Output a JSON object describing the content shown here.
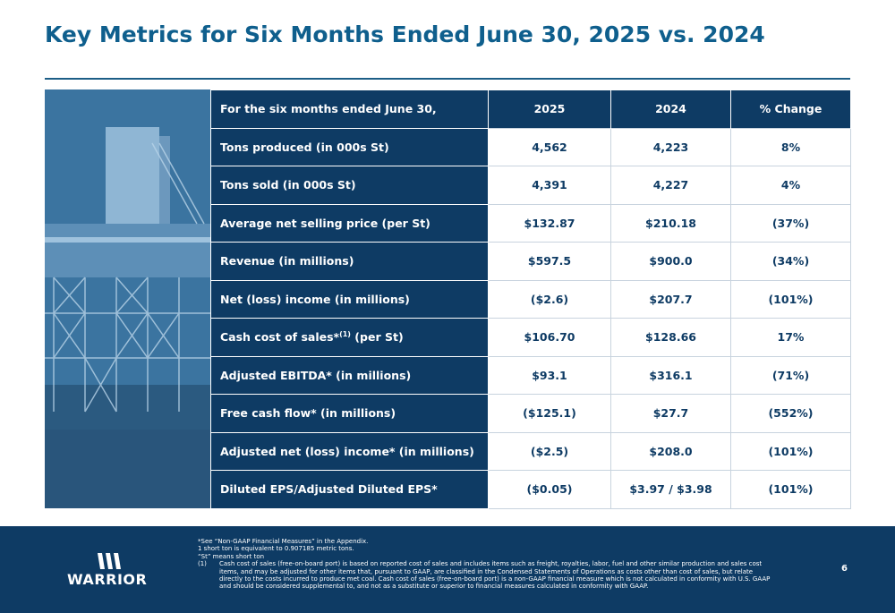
{
  "title": "Key Metrics for Six Months Ended June 30, 2025 vs. 2024",
  "table": {
    "headers": [
      "For the six months ended June 30,",
      "2025",
      "2024",
      "% Change"
    ],
    "rows": [
      {
        "label": "Tons produced (in 000s St)",
        "sup": "",
        "label_suffix": "",
        "v2025": "4,562",
        "v2024": "4,223",
        "change": "8%"
      },
      {
        "label": "Tons sold  (in 000s St)",
        "sup": "",
        "label_suffix": "",
        "v2025": "4,391",
        "v2024": "4,227",
        "change": "4%"
      },
      {
        "label": "Average net selling price (per St)",
        "sup": "",
        "label_suffix": "",
        "v2025": "$132.87",
        "v2024": "$210.18",
        "change": "(37%)"
      },
      {
        "label": "Revenue (in millions)",
        "sup": "",
        "label_suffix": "",
        "v2025": "$597.5",
        "v2024": "$900.0",
        "change": "(34%)"
      },
      {
        "label": "Net (loss) income (in millions)",
        "sup": "",
        "label_suffix": "",
        "v2025": "($2.6)",
        "v2024": "$207.7",
        "change": "(101%)"
      },
      {
        "label": "Cash cost of sales*",
        "sup": "(1)",
        "label_suffix": " (per St)",
        "v2025": "$106.70",
        "v2024": "$128.66",
        "change": "17%"
      },
      {
        "label": "Adjusted EBITDA* (in millions)",
        "sup": "",
        "label_suffix": "",
        "v2025": "$93.1",
        "v2024": "$316.1",
        "change": "(71%)"
      },
      {
        "label": "Free cash flow* (in millions)",
        "sup": "",
        "label_suffix": "",
        "v2025": "($125.1)",
        "v2024": "$27.7",
        "change": "(552%)"
      },
      {
        "label": "Adjusted net (loss) income* (in millions)",
        "sup": "",
        "label_suffix": "",
        "v2025": "($2.5)",
        "v2024": "$208.0",
        "change": "(101%)"
      },
      {
        "label": "Diluted EPS/Adjusted Diluted EPS*",
        "sup": "",
        "label_suffix": "",
        "v2025": "($0.05)",
        "v2024": "$3.97 / $3.98",
        "change": "(101%)"
      }
    ]
  },
  "footnotes": {
    "line1": "*See “Non-GAAP Financial Measures” in the Appendix.",
    "line2": "1 short ton is equivalent to 0.907185 metric tons.",
    "line3": "“St” means short ton",
    "note1_marker": "(1)",
    "note1_text": "Cash cost of sales (free-on-board port) is based on reported cost of sales and includes items such as freight, royalties, labor, fuel and other similar production and sales cost items, and may be adjusted for other items that, pursuant to GAAP, are classified in the Condensed Statements of Operations as costs other than cost of sales, but relate directly to the costs incurred to produce met coal.  Cash cost of sales (free-on-board port) is a non-GAAP financial measure which is not calculated in conformity with U.S. GAAP and should be considered supplemental to, and not as a substitute or superior to financial measures calculated in conformity with GAAP."
  },
  "logo_text": "WARRIOR",
  "page_number": "6"
}
